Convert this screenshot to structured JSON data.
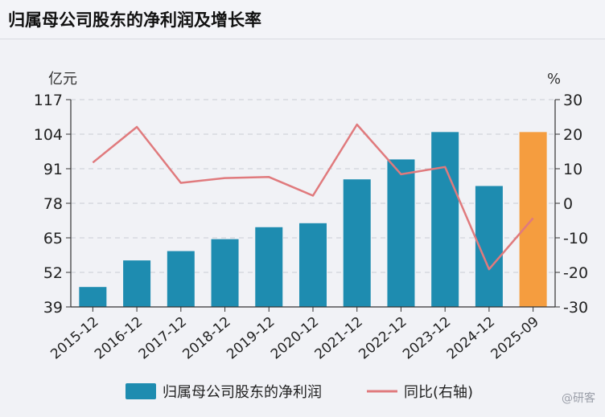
{
  "title": "归属母公司股东的净利润及增长率",
  "watermark": "@研客",
  "chart_data": {
    "type": "bar",
    "categories": [
      "2015-12",
      "2016-12",
      "2017-12",
      "2018-12",
      "2019-12",
      "2020-12",
      "2021-12",
      "2022-12",
      "2023-12",
      "2024-12",
      "2025-09"
    ],
    "series": [
      {
        "name": "归属母公司股东的净利润",
        "axis": "left",
        "type": "bar",
        "values": [
          46.5,
          56.5,
          60.0,
          64.5,
          69.0,
          70.5,
          87.0,
          94.5,
          104.8,
          84.5,
          104.8
        ],
        "color": "#1e8cb0",
        "highlight_last_color": "#f59d3f"
      },
      {
        "name": "同比(右轴)",
        "axis": "right",
        "type": "line",
        "values": [
          11.8,
          22.1,
          5.9,
          7.3,
          7.6,
          2.2,
          22.8,
          8.4,
          10.5,
          -19.1,
          -4.3
        ],
        "color": "#e07a7d"
      }
    ],
    "y_left": {
      "unit": "亿元",
      "ticks": [
        39,
        52,
        65,
        78,
        91,
        104,
        117
      ],
      "lim": [
        39,
        117
      ]
    },
    "y_right": {
      "unit": "%",
      "ticks": [
        -30,
        -20,
        -10,
        0,
        10,
        20,
        30
      ],
      "lim": [
        -30,
        30
      ]
    },
    "grid": true,
    "legend": "bottom-center"
  }
}
